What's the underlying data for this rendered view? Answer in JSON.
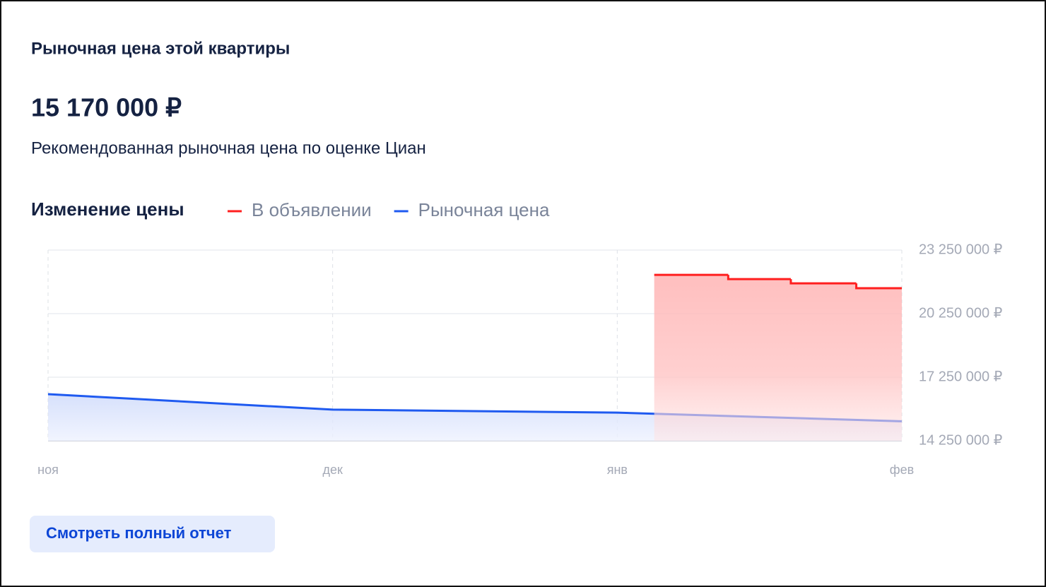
{
  "header": {
    "title": "Рыночная цена этой квартиры",
    "price": "15 170 000 ₽",
    "subtitle": "Рекомендованная рыночная цена по оценке Циан"
  },
  "chart_data": {
    "type": "line",
    "title": "Изменение цены",
    "xlim": [
      0,
      3
    ],
    "xticks": [
      {
        "value": 0,
        "label": "ноя"
      },
      {
        "value": 1,
        "label": "дек"
      },
      {
        "value": 2,
        "label": "янв"
      },
      {
        "value": 3,
        "label": "фев"
      }
    ],
    "ylim": [
      14250000,
      23250000
    ],
    "yticks": [
      {
        "value": 14250000,
        "label": "14 250 000 ₽"
      },
      {
        "value": 17250000,
        "label": "17 250 000 ₽"
      },
      {
        "value": 20250000,
        "label": "20 250 000 ₽"
      },
      {
        "value": 23250000,
        "label": "23 250 000 ₽"
      }
    ],
    "grid": true,
    "series": [
      {
        "name": "В объявлении",
        "color": "#ff1f1f",
        "step": true,
        "x": [
          2.13,
          2.39,
          2.61,
          2.84
        ],
        "values": [
          22080000,
          21880000,
          21680000,
          21450000
        ]
      },
      {
        "name": "Рыночная цена",
        "color": "#1f5af0",
        "step": false,
        "x": [
          0,
          1,
          2,
          3
        ],
        "values": [
          16450000,
          15720000,
          15580000,
          15170000
        ]
      }
    ]
  },
  "button": {
    "label": "Смотреть полный отчет"
  }
}
